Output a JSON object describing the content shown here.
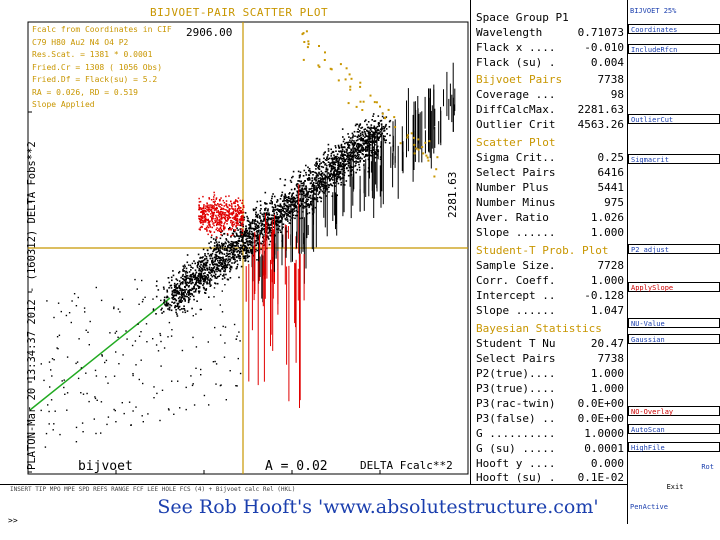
{
  "plot": {
    "title": "BIJVOET-PAIR SCATTER PLOT",
    "info_lines": [
      "Fcalc from Coordinates in CIF",
      "C79 H80 Au2 N4 O4 P2",
      "Res.Scat. =  1381 * 0.0001",
      "Fried.Cr   =  1308 ( 1056 Obs)",
      "Fried.Df = Flack(su) =  5.2",
      "RA = 0.026, RD = 0.519",
      "Slope Applied"
    ],
    "ymax_label": "2906.00",
    "xmax_label": "2281.63",
    "y_axis_label": "PLATON-Mar 20 13:34:37 2012 - (160312)    DELTA Fobs**2",
    "bottom_left_label": "bijvoet",
    "bottom_a_label": "A = 0.02",
    "bottom_x_label": "DELTA Fcalc**2"
  },
  "stats": {
    "header_rows": [
      {
        "label": "Space Group P1",
        "value": ""
      },
      {
        "label": "Wavelength",
        "value": "0.71073"
      },
      {
        "label": "Flack x ....",
        "value": "-0.010"
      },
      {
        "label": "Flack (su) .",
        "value": "0.004"
      }
    ],
    "bijvoet_title": "Bijvoet Pairs",
    "bijvoet_title_value": "7738",
    "bijvoet_rows": [
      {
        "label": "Coverage ...",
        "value": "98"
      },
      {
        "label": "DiffCalcMax.",
        "value": "2281.63"
      },
      {
        "label": "Outlier Crit",
        "value": "4563.26"
      }
    ],
    "scatter_title": "Scatter Plot",
    "scatter_rows": [
      {
        "label": "Sigma Crit..",
        "value": "0.25"
      },
      {
        "label": "Select Pairs",
        "value": "6416"
      },
      {
        "label": "Number Plus",
        "value": "5441"
      },
      {
        "label": "Number Minus",
        "value": "975"
      },
      {
        "label": "Aver. Ratio",
        "value": "1.026"
      },
      {
        "label": "Slope ......",
        "value": "1.000"
      }
    ],
    "student_title": "Student-T Prob. Plot",
    "student_rows": [
      {
        "label": "Sample Size.",
        "value": "7728"
      },
      {
        "label": "Corr. Coeff.",
        "value": "1.000"
      },
      {
        "label": "Intercept ..",
        "value": "-0.128"
      },
      {
        "label": "Slope ......",
        "value": "1.047"
      }
    ],
    "bayes_title": "Bayesian Statistics",
    "bayes_rows": [
      {
        "label": "Student T Nu",
        "value": "20.47"
      },
      {
        "label": "Select Pairs",
        "value": "7738"
      },
      {
        "label": "P2(true)....",
        "value": "1.000"
      },
      {
        "label": "P3(true)....",
        "value": "1.000"
      },
      {
        "label": "P3(rac-twin)",
        "value": "0.0E+00"
      },
      {
        "label": "P3(false) ..",
        "value": "0.0E+00"
      },
      {
        "label": "G ..........",
        "value": "1.0000"
      },
      {
        "label": "G (su) .....",
        "value": "0.0001"
      },
      {
        "label": "Hooft y ....",
        "value": "0.000"
      },
      {
        "label": "Hooft (su) .",
        "value": "0.1E-02"
      }
    ]
  },
  "menu": {
    "items": [
      "BIJVOET  25%",
      "Coordinates",
      "IncludeRfcn",
      "OutlierCut",
      "Sigmacrit",
      "P2 adjust",
      "ApplySlope",
      "NU-Value",
      "Gaussian",
      "NO-Overlay",
      "AutoScan",
      "HighFile",
      "Rot",
      "Exit",
      "PenActive"
    ]
  },
  "status_line": "INSERT  TIP  MPO  MPE  SPD  REFS  RANGE  FCF  LEE  HOLE  FCS (4)  + Bijvoet  calc  Rel  (HKL)",
  "prompt": ">>",
  "watermark": "See Rob Hooft's 'www.absolutestructure.com'",
  "colors": {
    "accent": "#c89600",
    "red_points": "#e00000",
    "green_line": "#22aa22",
    "text": "#000000",
    "link_blue": "#1b3fae"
  }
}
